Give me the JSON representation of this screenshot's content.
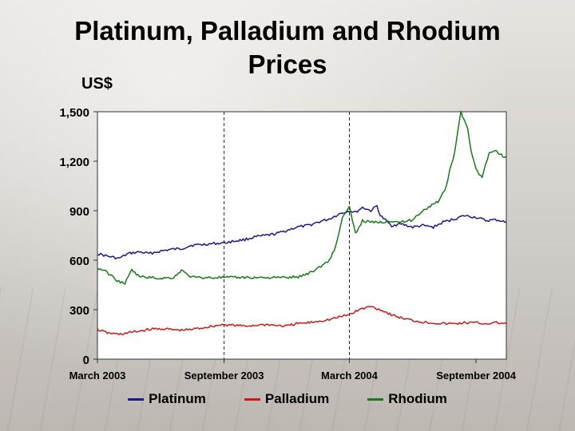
{
  "chart_data": {
    "type": "line",
    "title": "Platinum, Palladium and Rhodium Prices",
    "ylabel": "US$",
    "ylim": [
      0,
      1500
    ],
    "yticks": [
      "0",
      "300",
      "600",
      "900",
      "1,200",
      "1,500"
    ],
    "ytick_values": [
      0,
      300,
      600,
      900,
      1200,
      1500
    ],
    "xlim": [
      "2003-03-01",
      "2004-10-15"
    ],
    "xticks": [
      {
        "label": "March 2003",
        "date": "2003-03-01"
      },
      {
        "label": "September 2003",
        "date": "2003-09-01"
      },
      {
        "label": "March 2004",
        "date": "2004-03-01"
      },
      {
        "label": "September 2004",
        "date": "2004-09-01"
      }
    ],
    "vlines": [
      "2003-09-01",
      "2004-03-01"
    ],
    "legend_position": "bottom",
    "series": [
      {
        "name": "Platinum",
        "color": "#1a1a8c",
        "points": [
          [
            "2003-03-01",
            640
          ],
          [
            "2003-03-15",
            625
          ],
          [
            "2003-04-01",
            610
          ],
          [
            "2003-04-15",
            640
          ],
          [
            "2003-05-01",
            650
          ],
          [
            "2003-05-15",
            640
          ],
          [
            "2003-06-01",
            655
          ],
          [
            "2003-06-15",
            665
          ],
          [
            "2003-07-01",
            670
          ],
          [
            "2003-07-15",
            690
          ],
          [
            "2003-08-01",
            695
          ],
          [
            "2003-08-15",
            700
          ],
          [
            "2003-09-01",
            705
          ],
          [
            "2003-09-15",
            715
          ],
          [
            "2003-10-01",
            725
          ],
          [
            "2003-10-15",
            740
          ],
          [
            "2003-11-01",
            750
          ],
          [
            "2003-11-15",
            760
          ],
          [
            "2003-12-01",
            780
          ],
          [
            "2003-12-15",
            800
          ],
          [
            "2004-01-01",
            810
          ],
          [
            "2004-01-15",
            830
          ],
          [
            "2004-02-01",
            850
          ],
          [
            "2004-02-15",
            880
          ],
          [
            "2004-03-01",
            900
          ],
          [
            "2004-03-10",
            890
          ],
          [
            "2004-03-20",
            920
          ],
          [
            "2004-04-01",
            900
          ],
          [
            "2004-04-10",
            930
          ],
          [
            "2004-04-15",
            870
          ],
          [
            "2004-05-01",
            810
          ],
          [
            "2004-05-15",
            820
          ],
          [
            "2004-06-01",
            800
          ],
          [
            "2004-06-15",
            810
          ],
          [
            "2004-07-01",
            800
          ],
          [
            "2004-07-15",
            830
          ],
          [
            "2004-08-01",
            850
          ],
          [
            "2004-08-15",
            870
          ],
          [
            "2004-09-01",
            860
          ],
          [
            "2004-09-15",
            840
          ],
          [
            "2004-10-01",
            845
          ],
          [
            "2004-10-15",
            830
          ]
        ]
      },
      {
        "name": "Palladium",
        "color": "#cc1a1a",
        "points": [
          [
            "2003-03-01",
            180
          ],
          [
            "2003-03-15",
            160
          ],
          [
            "2003-04-01",
            150
          ],
          [
            "2003-04-15",
            160
          ],
          [
            "2003-05-01",
            170
          ],
          [
            "2003-05-15",
            180
          ],
          [
            "2003-06-01",
            185
          ],
          [
            "2003-06-15",
            180
          ],
          [
            "2003-07-01",
            175
          ],
          [
            "2003-07-15",
            180
          ],
          [
            "2003-08-01",
            190
          ],
          [
            "2003-08-15",
            200
          ],
          [
            "2003-09-01",
            210
          ],
          [
            "2003-09-15",
            205
          ],
          [
            "2003-10-01",
            200
          ],
          [
            "2003-10-15",
            205
          ],
          [
            "2003-11-01",
            210
          ],
          [
            "2003-11-15",
            205
          ],
          [
            "2003-12-01",
            200
          ],
          [
            "2003-12-15",
            215
          ],
          [
            "2004-01-01",
            220
          ],
          [
            "2004-01-15",
            230
          ],
          [
            "2004-02-01",
            240
          ],
          [
            "2004-02-15",
            255
          ],
          [
            "2004-03-01",
            270
          ],
          [
            "2004-03-15",
            300
          ],
          [
            "2004-04-01",
            320
          ],
          [
            "2004-04-15",
            300
          ],
          [
            "2004-05-01",
            270
          ],
          [
            "2004-05-15",
            250
          ],
          [
            "2004-06-01",
            235
          ],
          [
            "2004-06-15",
            225
          ],
          [
            "2004-07-01",
            220
          ],
          [
            "2004-07-15",
            215
          ],
          [
            "2004-08-01",
            215
          ],
          [
            "2004-08-15",
            220
          ],
          [
            "2004-09-01",
            220
          ],
          [
            "2004-09-15",
            215
          ],
          [
            "2004-10-01",
            220
          ],
          [
            "2004-10-15",
            215
          ]
        ]
      },
      {
        "name": "Rhodium",
        "color": "#1a7a1a",
        "points": [
          [
            "2003-03-01",
            550
          ],
          [
            "2003-03-10",
            540
          ],
          [
            "2003-03-20",
            510
          ],
          [
            "2003-04-01",
            470
          ],
          [
            "2003-04-10",
            460
          ],
          [
            "2003-04-20",
            540
          ],
          [
            "2003-05-01",
            500
          ],
          [
            "2003-06-01",
            490
          ],
          [
            "2003-06-20",
            495
          ],
          [
            "2003-07-01",
            540
          ],
          [
            "2003-07-10",
            510
          ],
          [
            "2003-07-20",
            495
          ],
          [
            "2003-08-01",
            495
          ],
          [
            "2003-09-01",
            495
          ],
          [
            "2003-10-01",
            495
          ],
          [
            "2003-11-01",
            495
          ],
          [
            "2003-12-01",
            495
          ],
          [
            "2003-12-20",
            500
          ],
          [
            "2004-01-01",
            520
          ],
          [
            "2004-01-15",
            550
          ],
          [
            "2004-02-01",
            600
          ],
          [
            "2004-02-10",
            680
          ],
          [
            "2004-02-20",
            860
          ],
          [
            "2004-03-01",
            920
          ],
          [
            "2004-03-10",
            760
          ],
          [
            "2004-03-20",
            840
          ],
          [
            "2004-04-01",
            830
          ],
          [
            "2004-04-15",
            830
          ],
          [
            "2004-05-01",
            840
          ],
          [
            "2004-05-15",
            830
          ],
          [
            "2004-06-01",
            845
          ],
          [
            "2004-06-15",
            900
          ],
          [
            "2004-07-01",
            940
          ],
          [
            "2004-07-10",
            960
          ],
          [
            "2004-07-20",
            1050
          ],
          [
            "2004-07-25",
            1150
          ],
          [
            "2004-08-01",
            1250
          ],
          [
            "2004-08-10",
            1500
          ],
          [
            "2004-08-20",
            1400
          ],
          [
            "2004-08-25",
            1260
          ],
          [
            "2004-09-01",
            1150
          ],
          [
            "2004-09-10",
            1100
          ],
          [
            "2004-09-15",
            1180
          ],
          [
            "2004-09-20",
            1250
          ],
          [
            "2004-10-01",
            1260
          ],
          [
            "2004-10-10",
            1230
          ],
          [
            "2004-10-15",
            1230
          ]
        ]
      }
    ]
  }
}
